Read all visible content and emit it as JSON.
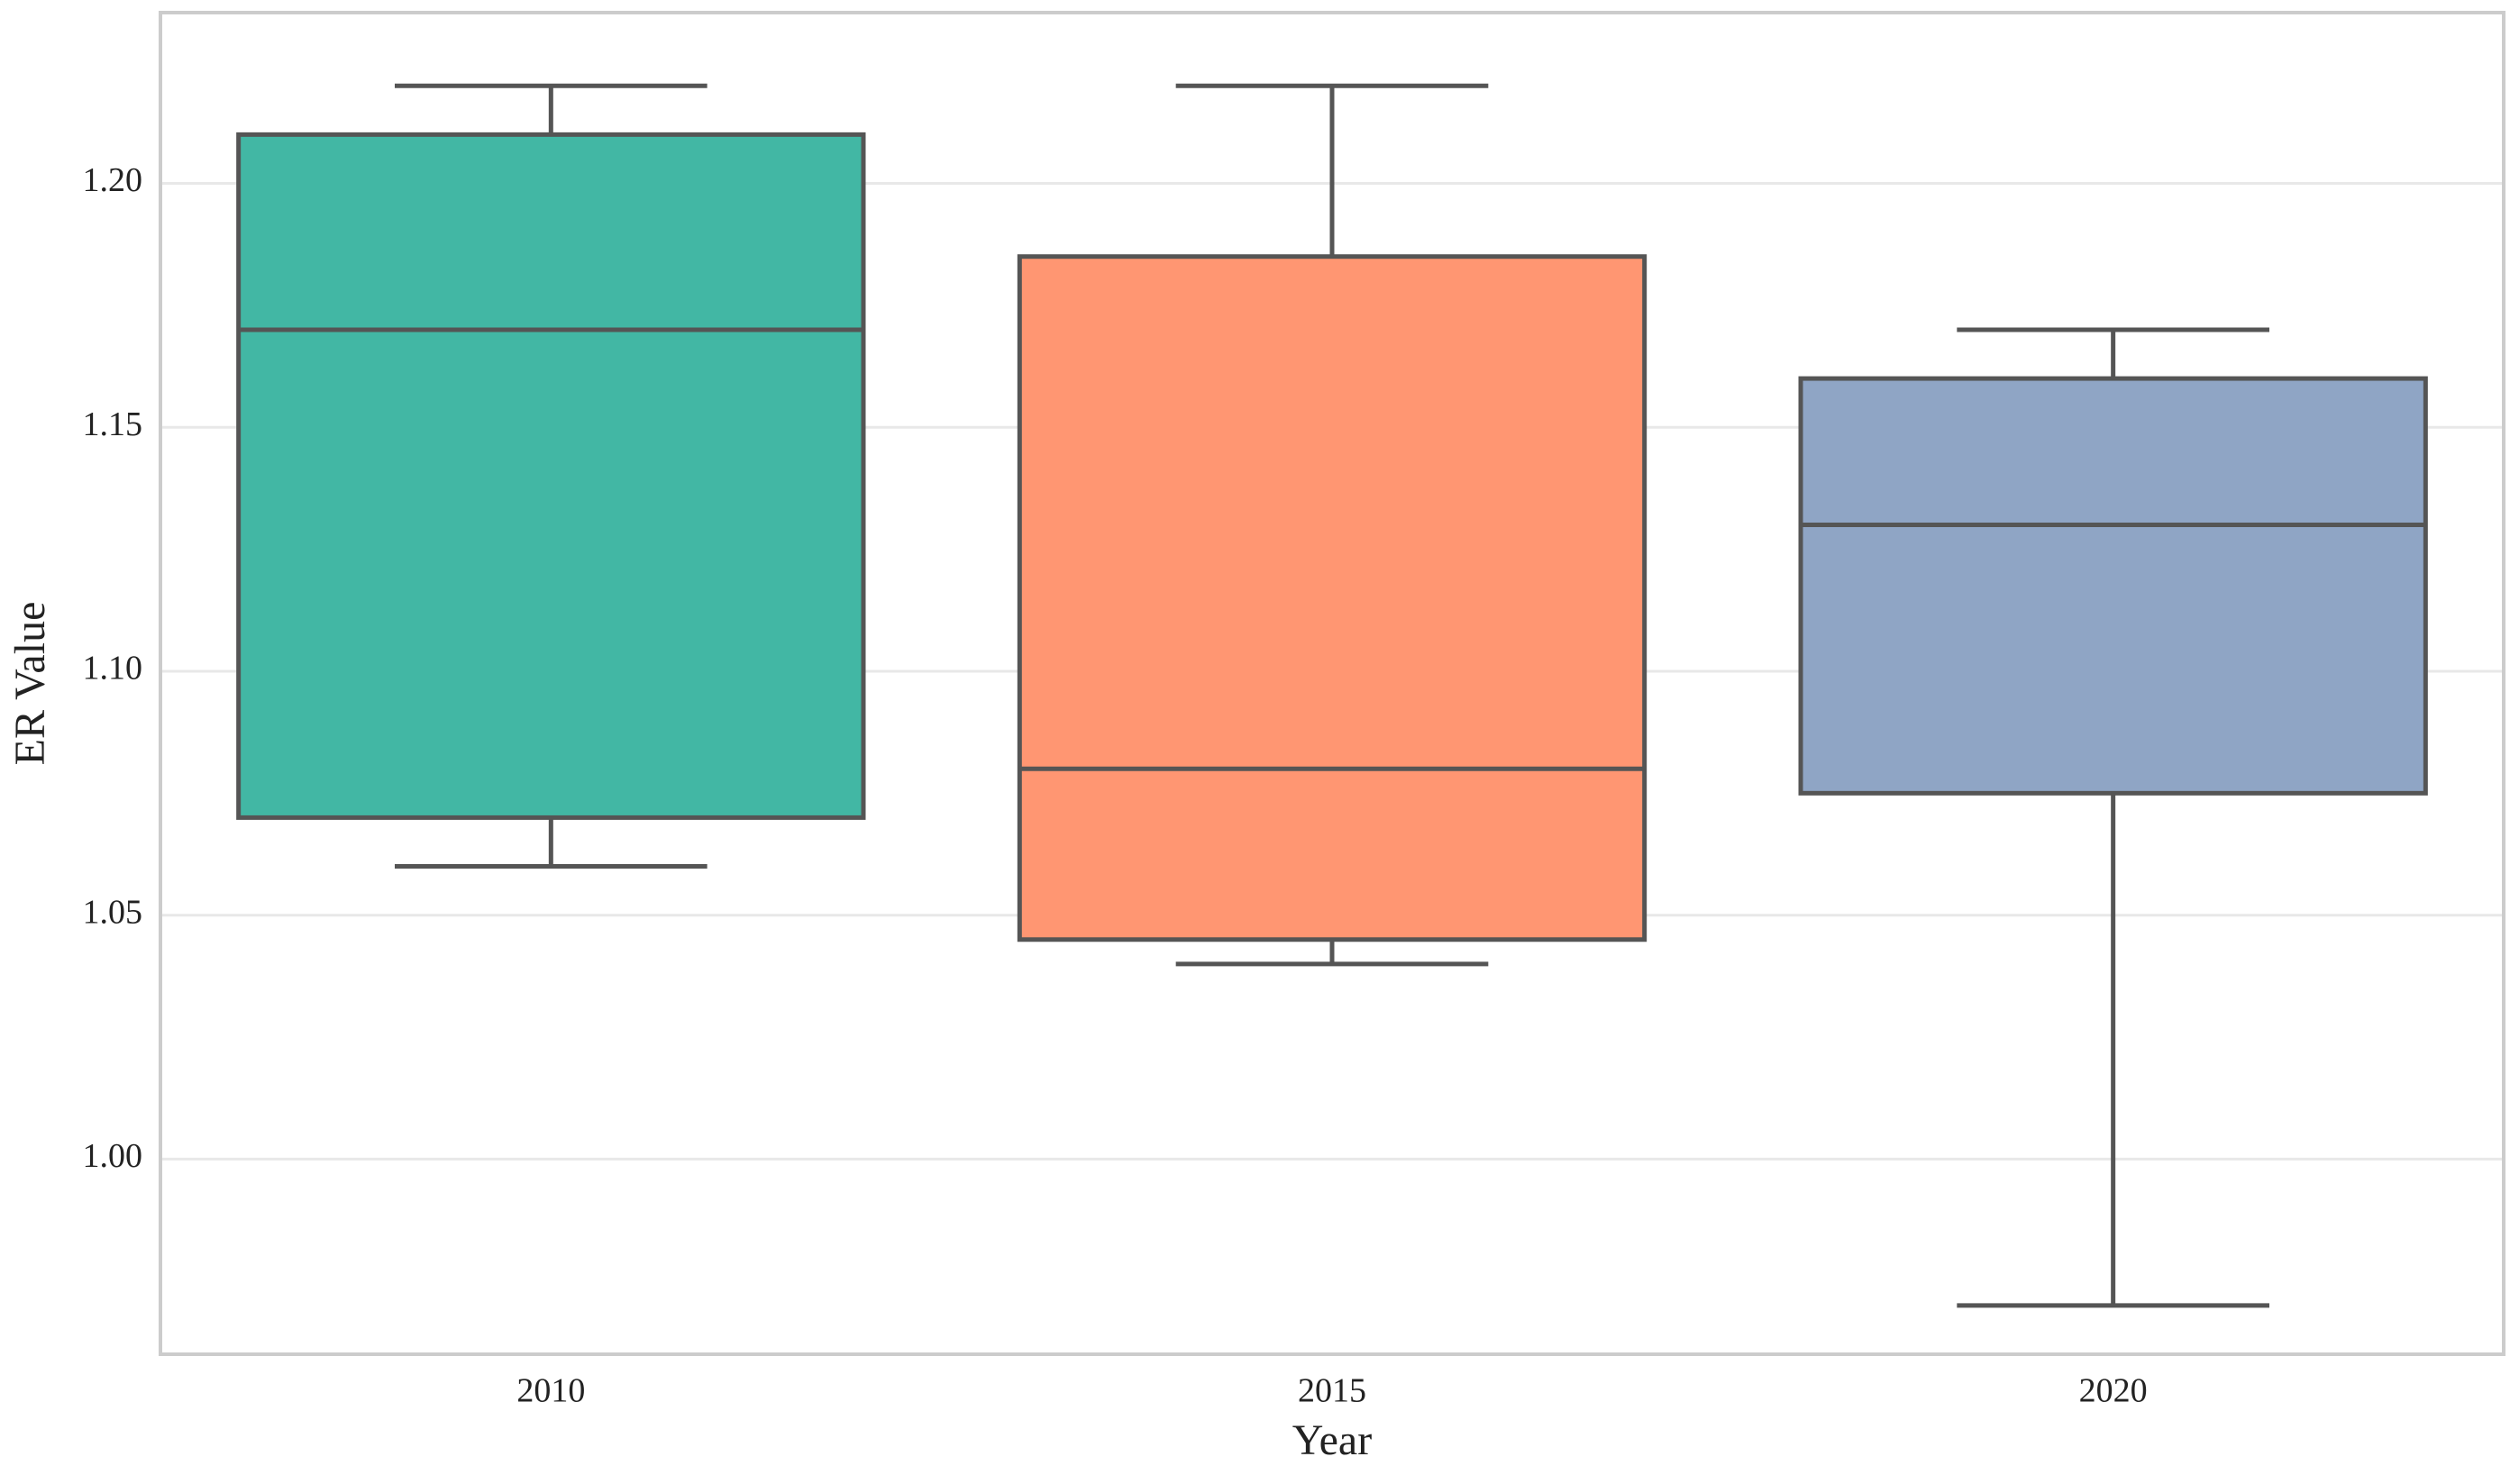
{
  "chart_data": {
    "type": "box",
    "xlabel": "Year",
    "ylabel": "ER Value",
    "categories": [
      "2010",
      "2015",
      "2020"
    ],
    "ylim": [
      0.96,
      1.235
    ],
    "yticks": [
      1.0,
      1.05,
      1.1,
      1.15,
      1.2
    ],
    "ytick_labels": [
      "1.00",
      "1.05",
      "1.10",
      "1.15",
      "1.20"
    ],
    "grid": "horizontal",
    "legend": "none",
    "boxes": [
      {
        "category": "2010",
        "whisker_low": 1.06,
        "q1": 1.07,
        "median": 1.17,
        "q3": 1.21,
        "whisker_high": 1.22,
        "color": "#42b7a4"
      },
      {
        "category": "2015",
        "whisker_low": 1.04,
        "q1": 1.045,
        "median": 1.08,
        "q3": 1.185,
        "whisker_high": 1.22,
        "color": "#ff9672"
      },
      {
        "category": "2020",
        "whisker_low": 0.97,
        "q1": 1.075,
        "median": 1.13,
        "q3": 1.16,
        "whisker_high": 1.17,
        "color": "#8fa5c5"
      }
    ],
    "edge_color": "#555555",
    "grid_color": "#e8e8e8",
    "frame_color": "#cccccc"
  }
}
